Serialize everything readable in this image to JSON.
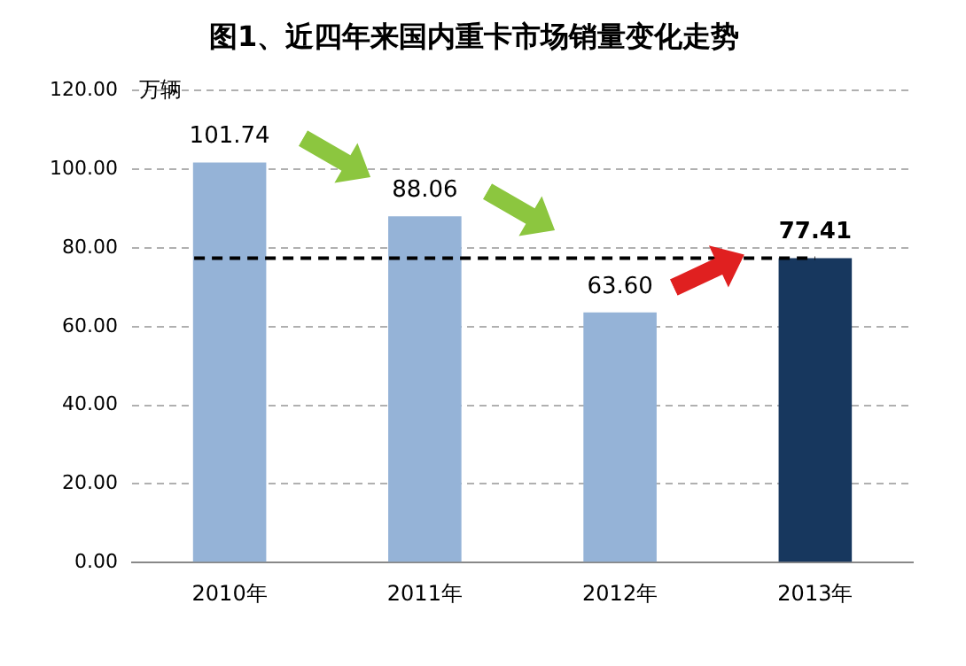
{
  "chart_data": {
    "type": "bar",
    "title": "图1、近四年来国内重卡市场销量变化走势",
    "ylabel": "万辆",
    "categories": [
      "2010年",
      "2011年",
      "2012年",
      "2013年"
    ],
    "values": [
      101.74,
      88.06,
      63.6,
      77.41
    ],
    "colors": [
      "#95b3d7",
      "#95b3d7",
      "#95b3d7",
      "#17375e"
    ],
    "value_labels": [
      "101.74",
      "88.06",
      "63.60",
      "77.41"
    ],
    "ylim": [
      0,
      120
    ],
    "yticks": [
      {
        "value": 0,
        "label": "0.00"
      },
      {
        "value": 20,
        "label": "20.00"
      },
      {
        "value": 40,
        "label": "40.00"
      },
      {
        "value": 60,
        "label": "60.00"
      },
      {
        "value": 80,
        "label": "80.00"
      },
      {
        "value": 100,
        "label": "100.00"
      },
      {
        "value": 120,
        "label": "120.00"
      }
    ],
    "ref_lines": [
      {
        "axis": "y",
        "value": 77.41,
        "color": "#000000",
        "line_style": "dashed"
      }
    ],
    "grid": "y",
    "legend": false
  }
}
